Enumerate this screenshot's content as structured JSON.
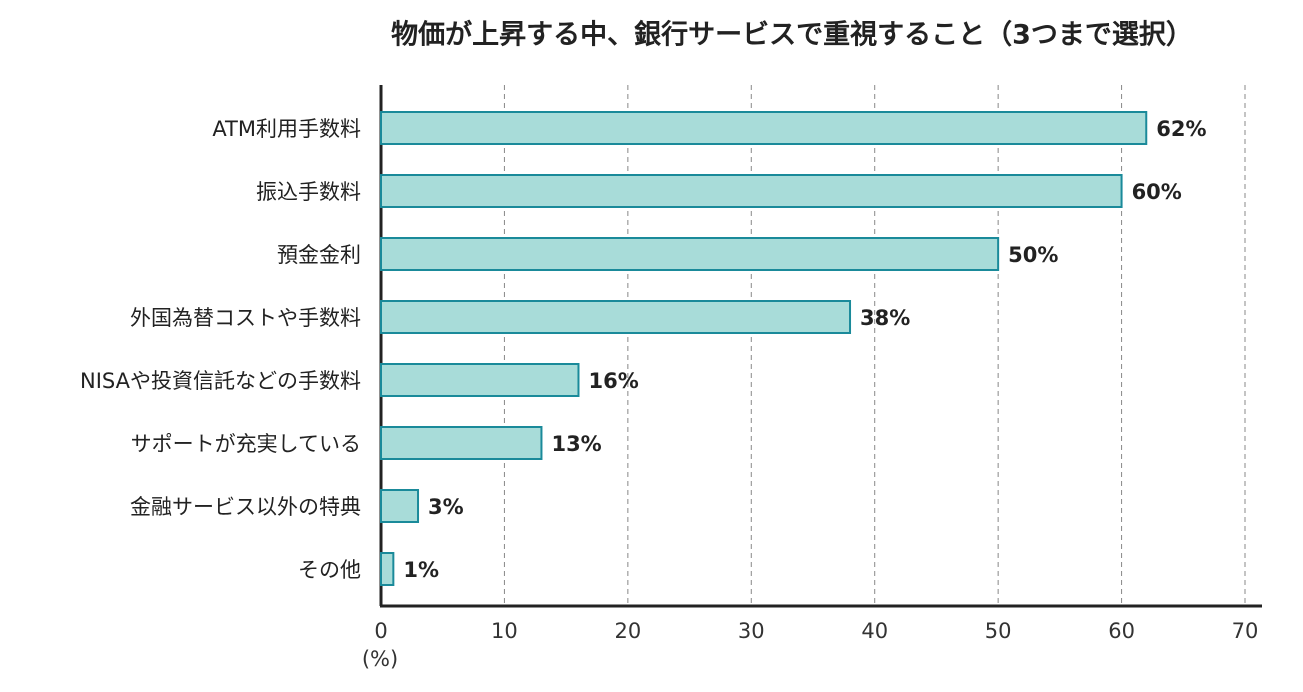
{
  "chart_data": {
    "type": "bar",
    "orientation": "horizontal",
    "title": "物価が上昇する中、銀行サービスで重視すること（3つまで選択）",
    "x_label": "(%)",
    "categories": [
      "ATM利用手数料",
      "振込手数料",
      "預金金利",
      "外国為替コストや手数料",
      "NISAや投資信託などの手数料",
      "サポートが充実している",
      "金融サービス以外の特典",
      "その他"
    ],
    "values": [
      62,
      60,
      50,
      38,
      16,
      13,
      3,
      1
    ],
    "value_labels": [
      "62%",
      "60%",
      "50%",
      "38%",
      "16%",
      "13%",
      "3%",
      "1%"
    ],
    "color": "#a8dcd9",
    "edge_color": "#1a8a9a",
    "xlim": [
      0,
      70
    ],
    "xticks": [
      0,
      10,
      20,
      30,
      40,
      50,
      60,
      70
    ],
    "grid": true
  }
}
